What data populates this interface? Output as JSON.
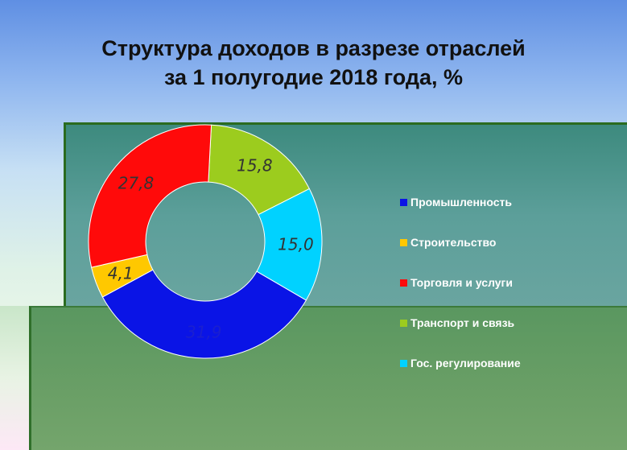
{
  "chart_data": {
    "type": "pie",
    "title_line1": "Структура доходов в разрезе отраслей",
    "title_line2": "за 1 полугодие 2018 года, %",
    "donut": true,
    "categories": [
      "Промышленность",
      "Строительство",
      "Торговля и услуги",
      "Транспорт и связь",
      "Гос. регулирование"
    ],
    "values": [
      31.9,
      4.1,
      27.8,
      15.8,
      15.0
    ],
    "labels": [
      "31,9",
      "4,1",
      "27,8",
      "15,8",
      "15,0"
    ],
    "colors": [
      "#0a14e6",
      "#ffc800",
      "#ff0a0a",
      "#9ccc1e",
      "#00d2ff"
    ],
    "legend_position": "right"
  }
}
